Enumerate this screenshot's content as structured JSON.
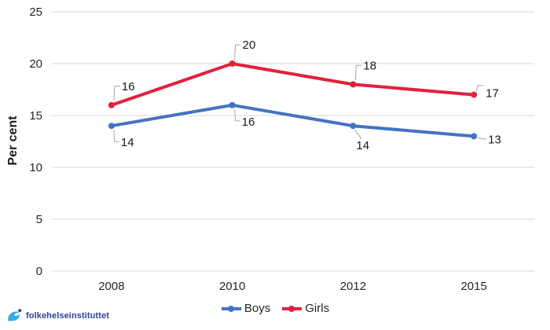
{
  "page": {
    "background": "#ffffff"
  },
  "logo": {
    "text": "folkehelseinstituttet",
    "icon": "fhi-swirl-icon",
    "text_color": "#2b4399",
    "icon_color": "#36ace2",
    "icon_dot_color": "#1d4f9f"
  },
  "chart_data": {
    "type": "line",
    "categories": [
      "2008",
      "2010",
      "2012",
      "2015"
    ],
    "series": [
      {
        "name": "Boys",
        "color": "#4472c4",
        "values": [
          14,
          16,
          14,
          13
        ],
        "label_placements": [
          "below",
          "below",
          "below-diag",
          "right"
        ]
      },
      {
        "name": "Girls",
        "color": "#e2213c",
        "values": [
          16,
          20,
          18,
          17
        ],
        "label_placements": [
          "above",
          "above",
          "above",
          "right-above"
        ]
      }
    ],
    "title": "",
    "xlabel": "",
    "ylabel": "Per cent",
    "ylim": [
      0,
      25
    ],
    "yticks": [
      0,
      5,
      10,
      15,
      20,
      25
    ],
    "grid": true,
    "legend_position": "bottom-center",
    "gridline_color": "#d9d9d9",
    "leader_line_color": "#a6a6a6",
    "text_color": "#262626",
    "tick_font_size": 15,
    "data_label_font_size": 15,
    "line_width": 4,
    "marker_radius": 4
  }
}
